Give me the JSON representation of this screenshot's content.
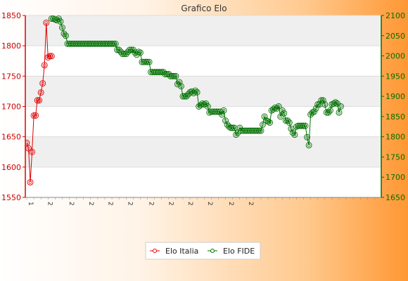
{
  "chart_data": {
    "type": "line",
    "title": "Grafico Elo",
    "grid": true,
    "legend_position": "bottom",
    "y_left": {
      "ylim": [
        1550,
        1850
      ],
      "ticks": [
        1550,
        1600,
        1650,
        1700,
        1750,
        1800,
        1850
      ],
      "color": "#e00000"
    },
    "y_right": {
      "ylim": [
        1650,
        2100
      ],
      "ticks": [
        1650,
        1700,
        1750,
        1800,
        1850,
        1900,
        1950,
        2000,
        2050,
        2100
      ],
      "color": "#007000"
    },
    "x_tick_labels": [
      "1",
      "2",
      "2",
      "2",
      "2",
      "2",
      "2",
      "2",
      "2",
      "2",
      "2",
      "2"
    ],
    "series": [
      {
        "name": "Elo Italia",
        "axis": "left",
        "color": "#e00000",
        "values": [
          1640,
          1631,
          1575,
          1625,
          1685,
          1685,
          1710,
          1710,
          1723,
          1738,
          1768,
          1838,
          1781,
          1783,
          1783
        ]
      },
      {
        "name": "Elo FIDE",
        "axis": "right",
        "color": "#007000",
        "start_index": 14,
        "values": [
          2092,
          2092,
          2090,
          2088,
          2092,
          2085,
          2070,
          2055,
          2050,
          2030,
          2030,
          2030,
          2030,
          2030,
          2030,
          2030,
          2030,
          2030,
          2030,
          2030,
          2030,
          2030,
          2030,
          2030,
          2030,
          2030,
          2030,
          2030,
          2030,
          2030,
          2030,
          2030,
          2030,
          2030,
          2030,
          2030,
          2030,
          2015,
          2015,
          2010,
          2005,
          2005,
          2005,
          2010,
          2015,
          2015,
          2015,
          2008,
          2003,
          2010,
          2008,
          1985,
          1985,
          1985,
          1985,
          1985,
          1960,
          1960,
          1960,
          1960,
          1960,
          1960,
          1960,
          1960,
          1955,
          1955,
          1955,
          1950,
          1950,
          1950,
          1950,
          1930,
          1935,
          1925,
          1900,
          1900,
          1900,
          1905,
          1910,
          1912,
          1908,
          1914,
          1910,
          1875,
          1878,
          1882,
          1880,
          1882,
          1875,
          1860,
          1862,
          1862,
          1862,
          1862,
          1862,
          1862,
          1855,
          1865,
          1840,
          1830,
          1825,
          1822,
          1822,
          1822,
          1805,
          1810,
          1822,
          1815,
          1815,
          1815,
          1815,
          1815,
          1815,
          1815,
          1815,
          1815,
          1815,
          1815,
          1815,
          1830,
          1850,
          1840,
          1838,
          1835,
          1865,
          1868,
          1872,
          1870,
          1875,
          1850,
          1865,
          1858,
          1840,
          1840,
          1835,
          1820,
          1810,
          1805,
          1825,
          1827,
          1827,
          1827,
          1827,
          1827,
          1799,
          1779,
          1855,
          1860,
          1862,
          1870,
          1880,
          1880,
          1890,
          1890,
          1880,
          1860,
          1860,
          1865,
          1880,
          1882,
          1885,
          1882,
          1860,
          1875
        ]
      }
    ]
  }
}
